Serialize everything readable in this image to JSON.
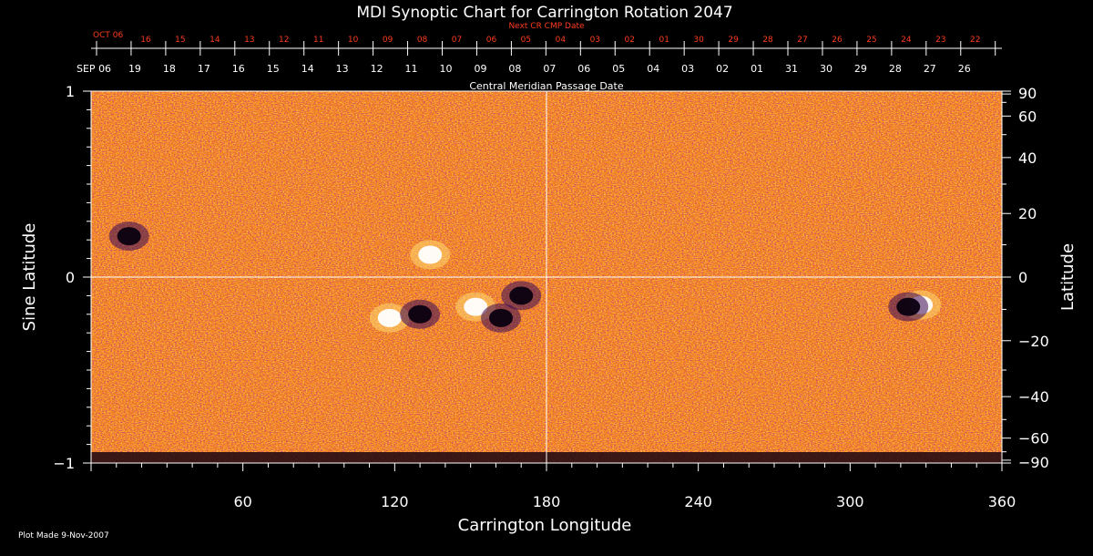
{
  "chart_data": {
    "type": "heatmap",
    "title": "MDI Synoptic Chart for Carrington Rotation 2047",
    "xlabel": "Carrington Longitude",
    "ylabel_left": "Sine Latitude",
    "ylabel_right": "Latitude",
    "xlim": [
      0,
      360
    ],
    "ylim": [
      -1,
      1
    ],
    "x_ticks": [
      60,
      120,
      180,
      240,
      300,
      360
    ],
    "y_ticks_left": [
      "1",
      "0",
      "−1"
    ],
    "y_ticks_right": [
      "90",
      "60",
      "40",
      "20",
      "0",
      "−20",
      "−40",
      "−60",
      "−90"
    ],
    "y_ticks_right_values": [
      90,
      60,
      40,
      20,
      0,
      -20,
      -40,
      -60,
      -90
    ],
    "top_axis_red": {
      "title": "Next CR CMP Date",
      "first_label": "OCT 06",
      "labels": [
        "16",
        "15",
        "14",
        "13",
        "12",
        "11",
        "10",
        "09",
        "08",
        "07",
        "06",
        "05",
        "04",
        "03",
        "02",
        "01",
        "30",
        "29",
        "28",
        "27",
        "26",
        "25",
        "24",
        "23",
        "22"
      ]
    },
    "top_axis_white": {
      "title": "Central Meridian Passage Date",
      "first_label": "SEP 06",
      "labels": [
        "19",
        "18",
        "17",
        "16",
        "15",
        "14",
        "13",
        "12",
        "11",
        "10",
        "09",
        "08",
        "07",
        "06",
        "05",
        "04",
        "03",
        "02",
        "01",
        "31",
        "30",
        "29",
        "28",
        "27",
        "26"
      ]
    },
    "colormap": [
      "#200020",
      "#5a1070",
      "#d02800",
      "#ff7a10",
      "#ffd060",
      "#ffffff"
    ],
    "active_regions": [
      {
        "lon": 118,
        "sinlat": -0.22,
        "polarity": "positive"
      },
      {
        "lon": 130,
        "sinlat": -0.2,
        "polarity": "negative"
      },
      {
        "lon": 152,
        "sinlat": -0.16,
        "polarity": "positive"
      },
      {
        "lon": 162,
        "sinlat": -0.22,
        "polarity": "negative"
      },
      {
        "lon": 170,
        "sinlat": -0.1,
        "polarity": "negative"
      },
      {
        "lon": 134,
        "sinlat": 0.12,
        "polarity": "positive"
      },
      {
        "lon": 328,
        "sinlat": -0.15,
        "polarity": "positive"
      },
      {
        "lon": 323,
        "sinlat": -0.16,
        "polarity": "negative"
      },
      {
        "lon": 15,
        "sinlat": 0.22,
        "polarity": "negative"
      }
    ]
  },
  "footer": {
    "plot_made": "Plot Made  9-Nov-2007"
  }
}
